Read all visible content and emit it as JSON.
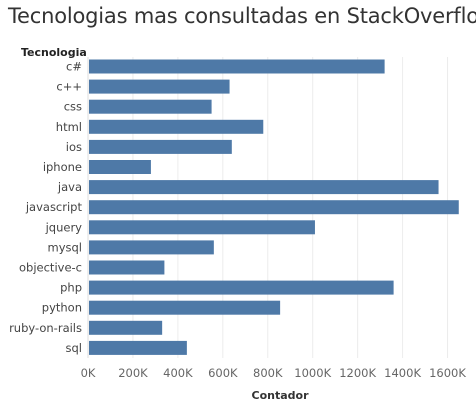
{
  "chart_data": {
    "type": "bar",
    "orientation": "horizontal",
    "title": "Tecnologias mas consultadas en StackOverflow",
    "ylabel": "Tecnologia",
    "xlabel": "Contador",
    "categories": [
      "c#",
      "c++",
      "css",
      "html",
      "ios",
      "iphone",
      "java",
      "javascript",
      "jquery",
      "mysql",
      "objective-c",
      "php",
      "python",
      "ruby-on-rails",
      "sql"
    ],
    "values": [
      1320000,
      630000,
      550000,
      780000,
      640000,
      280000,
      1560000,
      1650000,
      1010000,
      560000,
      340000,
      1360000,
      855000,
      330000,
      440000
    ],
    "xlim": [
      0,
      1700000
    ],
    "xticks": [
      "0K",
      "200K",
      "400K",
      "600K",
      "800K",
      "1000K",
      "1200K",
      "1400K",
      "1600K"
    ],
    "xtick_values": [
      0,
      200000,
      400000,
      600000,
      800000,
      1000000,
      1200000,
      1400000,
      1600000
    ],
    "bar_color": "#4e79a7",
    "grid": true
  }
}
